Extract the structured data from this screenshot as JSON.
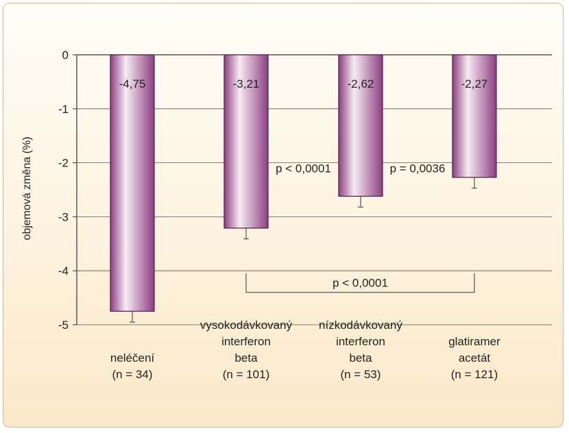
{
  "chart_data": {
    "type": "bar",
    "title": "",
    "ylabel": "objemová změna (%)",
    "xlabel": "",
    "ylim": [
      -5,
      0
    ],
    "yticks": [
      0,
      -1,
      -2,
      -3,
      -4,
      -5
    ],
    "ytick_labels": [
      "0",
      "-1",
      "-2",
      "-3",
      "-4",
      "-5"
    ],
    "grid": true,
    "categories": [
      [
        "neléčení",
        "(n = 34)"
      ],
      [
        "vysokodávkovaný",
        "interferon",
        "beta",
        "(n = 101)"
      ],
      [
        "nízkodávkovaný",
        "interferon",
        "beta",
        "(n = 53)"
      ],
      [
        "glatiramer",
        "acetát",
        "(n = 121)"
      ]
    ],
    "values": [
      -4.75,
      -3.21,
      -2.62,
      -2.27
    ],
    "value_labels": [
      "-4,75",
      "-3,21",
      "-2,62",
      "-2,27"
    ],
    "error_bars": [
      0.2,
      0.2,
      0.2,
      0.2
    ],
    "annotations": [
      {
        "text": "p < 0,0001",
        "between": [
          1,
          2
        ],
        "y": -2.1
      },
      {
        "text": "p = 0,0036",
        "between": [
          2,
          3
        ],
        "y": -2.1
      },
      {
        "text": "p < 0,0001",
        "bracket": [
          1,
          3
        ],
        "y": -4.4
      }
    ],
    "colors": {
      "bar_edge": "#4a1f40",
      "bar_dark": "#8e3f82",
      "bar_light": "#f6ecf2",
      "grid": "#555555"
    }
  }
}
